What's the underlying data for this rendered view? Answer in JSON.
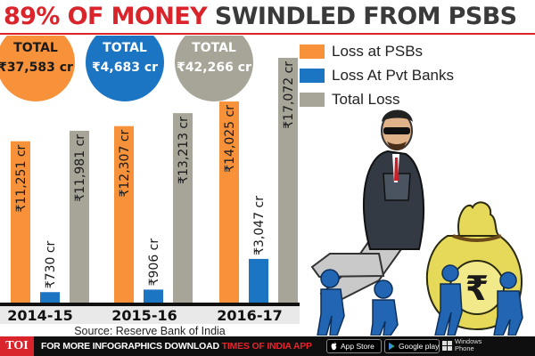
{
  "headline": {
    "part1": "89% OF MONEY",
    "part2": "SWINDLED FROM PSBS"
  },
  "chart_data": {
    "type": "bar",
    "title": "89% OF MONEY SWINDLED FROM PSBS",
    "categories": [
      "2014-15",
      "2015-16",
      "2016-17"
    ],
    "series": [
      {
        "name": "Loss at PSBs",
        "color": "#f7913a",
        "values": [
          11251,
          12307,
          14025
        ],
        "labels": [
          "₹11,251 cr",
          "₹12,307 cr",
          "₹14,025 cr"
        ]
      },
      {
        "name": "Loss At Pvt Banks",
        "color": "#1b75c2",
        "values": [
          730,
          906,
          3047
        ],
        "labels": [
          "₹730 cr",
          "₹906 cr",
          "₹3,047 cr"
        ]
      },
      {
        "name": "Total Loss",
        "color": "#a7a598",
        "values": [
          11981,
          13213,
          17072
        ],
        "labels": [
          "₹11,981 cr",
          "₹13,213 cr",
          "₹17,072 cr"
        ]
      }
    ],
    "totals": [
      {
        "series": "Loss at PSBs",
        "title": "TOTAL",
        "value": "₹37,583 cr"
      },
      {
        "series": "Loss At Pvt Banks",
        "title": "TOTAL",
        "value": "₹4,683 cr"
      },
      {
        "series": "Total Loss",
        "title": "TOTAL",
        "value": "₹42,266 cr"
      }
    ],
    "ylim": [
      0,
      18000
    ],
    "legend_position": "top-right",
    "grid": false,
    "source": "Source: Reserve Bank of India"
  },
  "illustration": {
    "icon": "banker-on-money-bag-illustration",
    "currency_symbol": "₹"
  },
  "footer": {
    "logo": "TOI",
    "promo_text": "FOR MORE  INFOGRAPHICS DOWNLOAD",
    "promo_brand": "TIMES OF INDIA APP",
    "app_store": {
      "small": "Available on the",
      "label": "App Store"
    },
    "google_play": {
      "small": "GET IT ON",
      "label": "Google play"
    },
    "windows": {
      "line1": "Windows",
      "line2": "Phone"
    }
  }
}
